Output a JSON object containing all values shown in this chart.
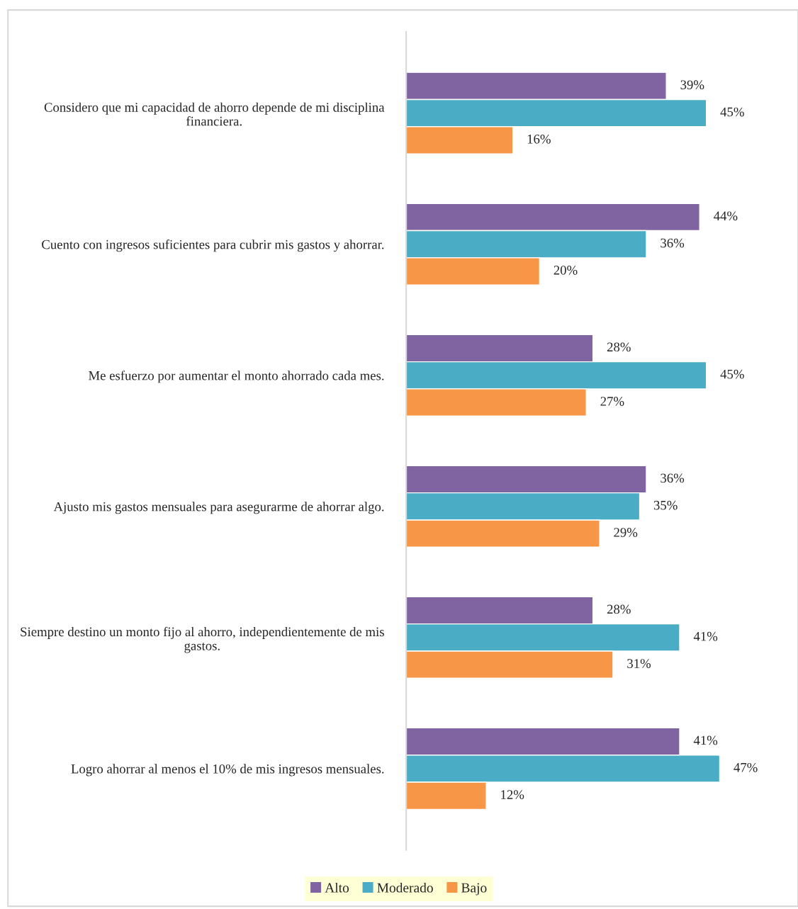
{
  "chart_data": {
    "type": "bar",
    "orientation": "horizontal",
    "legend": "bottom",
    "grid": false,
    "categories": [
      "Considero que mi capacidad de ahorro depende de mi disciplina financiera.",
      "Cuento con ingresos suficientes para cubrir mis gastos y ahorrar.",
      "Me esfuerzo por aumentar el monto ahorrado cada mes.",
      "Ajusto mis gastos mensuales para asegurarme de ahorrar algo.",
      "Siempre destino un monto fijo al ahorro, independientemente de mis gastos.",
      "Logro ahorrar al menos el 10% de mis ingresos mensuales."
    ],
    "series": [
      {
        "name": "Alto",
        "color": "#8064a2",
        "values": [
          39,
          44,
          28,
          36,
          28,
          41
        ],
        "value_labels": [
          "39%",
          "44%",
          "28%",
          "36%",
          "28%",
          "41%"
        ]
      },
      {
        "name": "Moderado",
        "color": "#4bacc6",
        "values": [
          45,
          36,
          45,
          35,
          41,
          47
        ],
        "value_labels": [
          "45%",
          "36%",
          "45%",
          "35%",
          "41%",
          "47%"
        ]
      },
      {
        "name": "Bajo",
        "color": "#f79646",
        "values": [
          16,
          20,
          27,
          29,
          31,
          12
        ],
        "value_labels": [
          "16%",
          "20%",
          "27%",
          "29%",
          "31%",
          "12%"
        ]
      }
    ]
  }
}
